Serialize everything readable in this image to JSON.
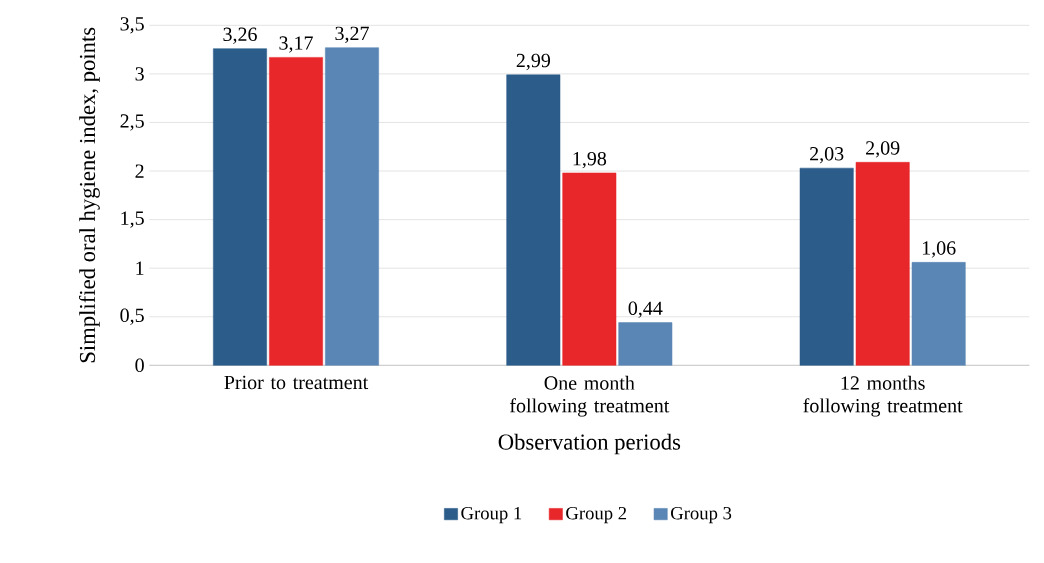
{
  "chart_data": {
    "type": "bar",
    "xlabel": "Observation periods",
    "ylabel": "Simplified oral hygiene index, points",
    "categories": [
      "Prior to treatment",
      "One month following treatment",
      "12 months following treatment"
    ],
    "series": [
      {
        "name": "Group 1",
        "color": "#2b5c8a",
        "values": [
          3.26,
          2.99,
          2.03
        ],
        "value_labels": [
          "3,26",
          "2,99",
          "2,03"
        ]
      },
      {
        "name": "Group 2",
        "color": "#e8272a",
        "values": [
          3.17,
          1.98,
          2.09
        ],
        "value_labels": [
          "3,17",
          "1,98",
          "2,09"
        ]
      },
      {
        "name": "Group 3",
        "color": "#5a86b5",
        "values": [
          3.27,
          0.44,
          1.06
        ],
        "value_labels": [
          "3,27",
          "0,44",
          "1,06"
        ]
      }
    ],
    "ylim": [
      0,
      3.5
    ],
    "yticks": [
      0,
      {
        "value": 0.5,
        "label": "0,5"
      },
      1,
      {
        "value": 1.5,
        "label": "1,5"
      },
      2,
      {
        "value": 2.5,
        "label": "2,5"
      },
      3,
      {
        "value": 3.5,
        "label": "3,5"
      }
    ],
    "grid": "y",
    "legend": "bottom"
  }
}
